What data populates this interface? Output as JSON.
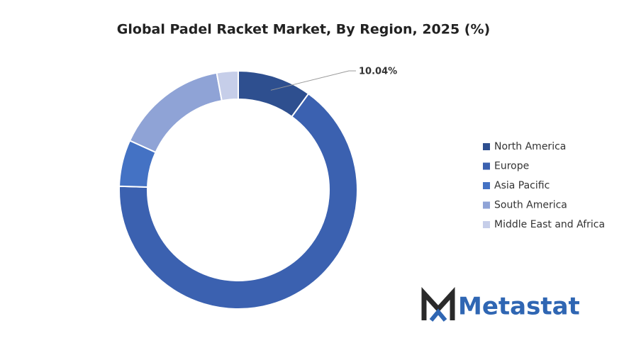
{
  "chart_data": {
    "type": "donut",
    "title": "Global Padel Racket Market, By Region, 2025 (%)",
    "categories": [
      "North America",
      "Europe",
      "Asia Pacific",
      "South America",
      "Middle East and Africa"
    ],
    "values": [
      10.04,
      65.46,
      6.3,
      15.3,
      2.9
    ],
    "value_labels": [
      "10.04%",
      null,
      null,
      null,
      null
    ],
    "colors": [
      "#2e4f8f",
      "#3b61b0",
      "#4472c4",
      "#8fa3d6",
      "#c6cee9"
    ],
    "legend": "right"
  },
  "logo": "Metastat"
}
